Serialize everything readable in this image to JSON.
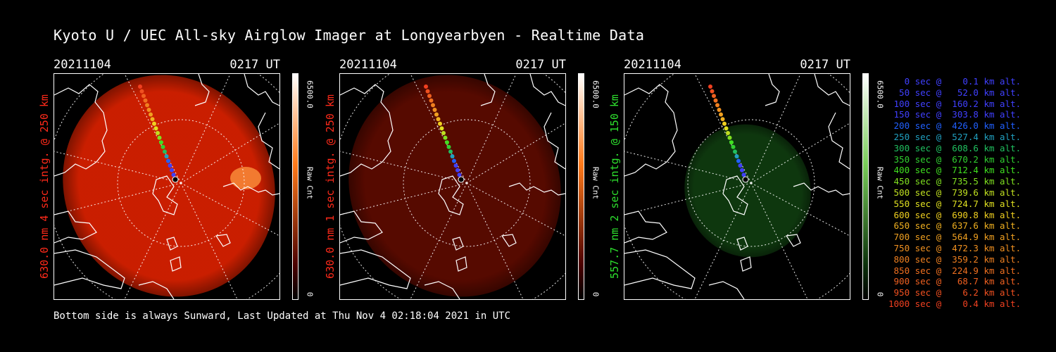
{
  "title": "Kyoto U / UEC All-sky Airglow Imager at Longyearbyen - Realtime Data",
  "footer": "Bottom side is always Sunward, Last Updated at Thu Nov  4 02:18:04 2021 in UTC",
  "panels": [
    {
      "date": "20211104",
      "time": "0217 UT",
      "side_label": "630.0 nm 4 sec intg. @ 250 km",
      "label_color": "#ff2a1a",
      "glow_color": "#d42000",
      "glow_opacity": 0.95,
      "cbar_max": "6500.0",
      "cbar_unit": "Raw Cnt",
      "cbar_min": "0",
      "cbar_top": "#ffffff",
      "cbar_mid": "#ff7a1a",
      "cbar_bottom": "#4a0000"
    },
    {
      "date": "20211104",
      "time": "0217 UT",
      "side_label": "630.0 nm 1 sec intg. @ 250 km",
      "label_color": "#ff2a1a",
      "glow_color": "#5a0a00",
      "glow_opacity": 0.95,
      "cbar_max": "6500.0",
      "cbar_unit": "Raw Cnt",
      "cbar_min": "0",
      "cbar_top": "#ffffff",
      "cbar_mid": "#ff7a1a",
      "cbar_bottom": "#4a0000"
    },
    {
      "date": "20211104",
      "time": "0217 UT",
      "side_label": "557.7 nm 2 sec intg. @ 150 km",
      "label_color": "#2ee02e",
      "glow_color": "#0f3a0f",
      "glow_opacity": 0.95,
      "cbar_max": "6500.0",
      "cbar_unit": "Raw Cnt",
      "cbar_min": "0",
      "cbar_top": "#ffffff",
      "cbar_mid": "#7acc5a",
      "cbar_bottom": "#0a300a"
    }
  ],
  "legend": [
    {
      "text": "   0 sec @    0.1 km alt.",
      "color": "#4040ff"
    },
    {
      "text": "  50 sec @   52.0 km alt.",
      "color": "#4040ff"
    },
    {
      "text": " 100 sec @  160.2 km alt.",
      "color": "#4040ff"
    },
    {
      "text": " 150 sec @  303.8 km alt.",
      "color": "#4040ff"
    },
    {
      "text": " 200 sec @  426.0 km alt.",
      "color": "#2060ff"
    },
    {
      "text": " 250 sec @  527.4 km alt.",
      "color": "#20a0c0"
    },
    {
      "text": " 300 sec @  608.6 km alt.",
      "color": "#20c060"
    },
    {
      "text": " 350 sec @  670.2 km alt.",
      "color": "#30d030"
    },
    {
      "text": " 400 sec @  712.4 km alt.",
      "color": "#40e020"
    },
    {
      "text": " 450 sec @  735.5 km alt.",
      "color": "#80e020"
    },
    {
      "text": " 500 sec @  739.6 km alt.",
      "color": "#c0e020"
    },
    {
      "text": " 550 sec @  724.7 km alt.",
      "color": "#e0e020"
    },
    {
      "text": " 600 sec @  690.8 km alt.",
      "color": "#f0d020"
    },
    {
      "text": " 650 sec @  637.6 km alt.",
      "color": "#f0b020"
    },
    {
      "text": " 700 sec @  564.9 km alt.",
      "color": "#f0a020"
    },
    {
      "text": " 750 sec @  472.3 km alt.",
      "color": "#f09020"
    },
    {
      "text": " 800 sec @  359.2 km alt.",
      "color": "#f08020"
    },
    {
      "text": " 850 sec @  224.9 km alt.",
      "color": "#f07020"
    },
    {
      "text": " 900 sec @   68.7 km alt.",
      "color": "#f06020"
    },
    {
      "text": " 950 sec @    6.2 km alt.",
      "color": "#f05020"
    },
    {
      "text": "1000 sec @    0.4 km alt.",
      "color": "#f04020"
    }
  ]
}
